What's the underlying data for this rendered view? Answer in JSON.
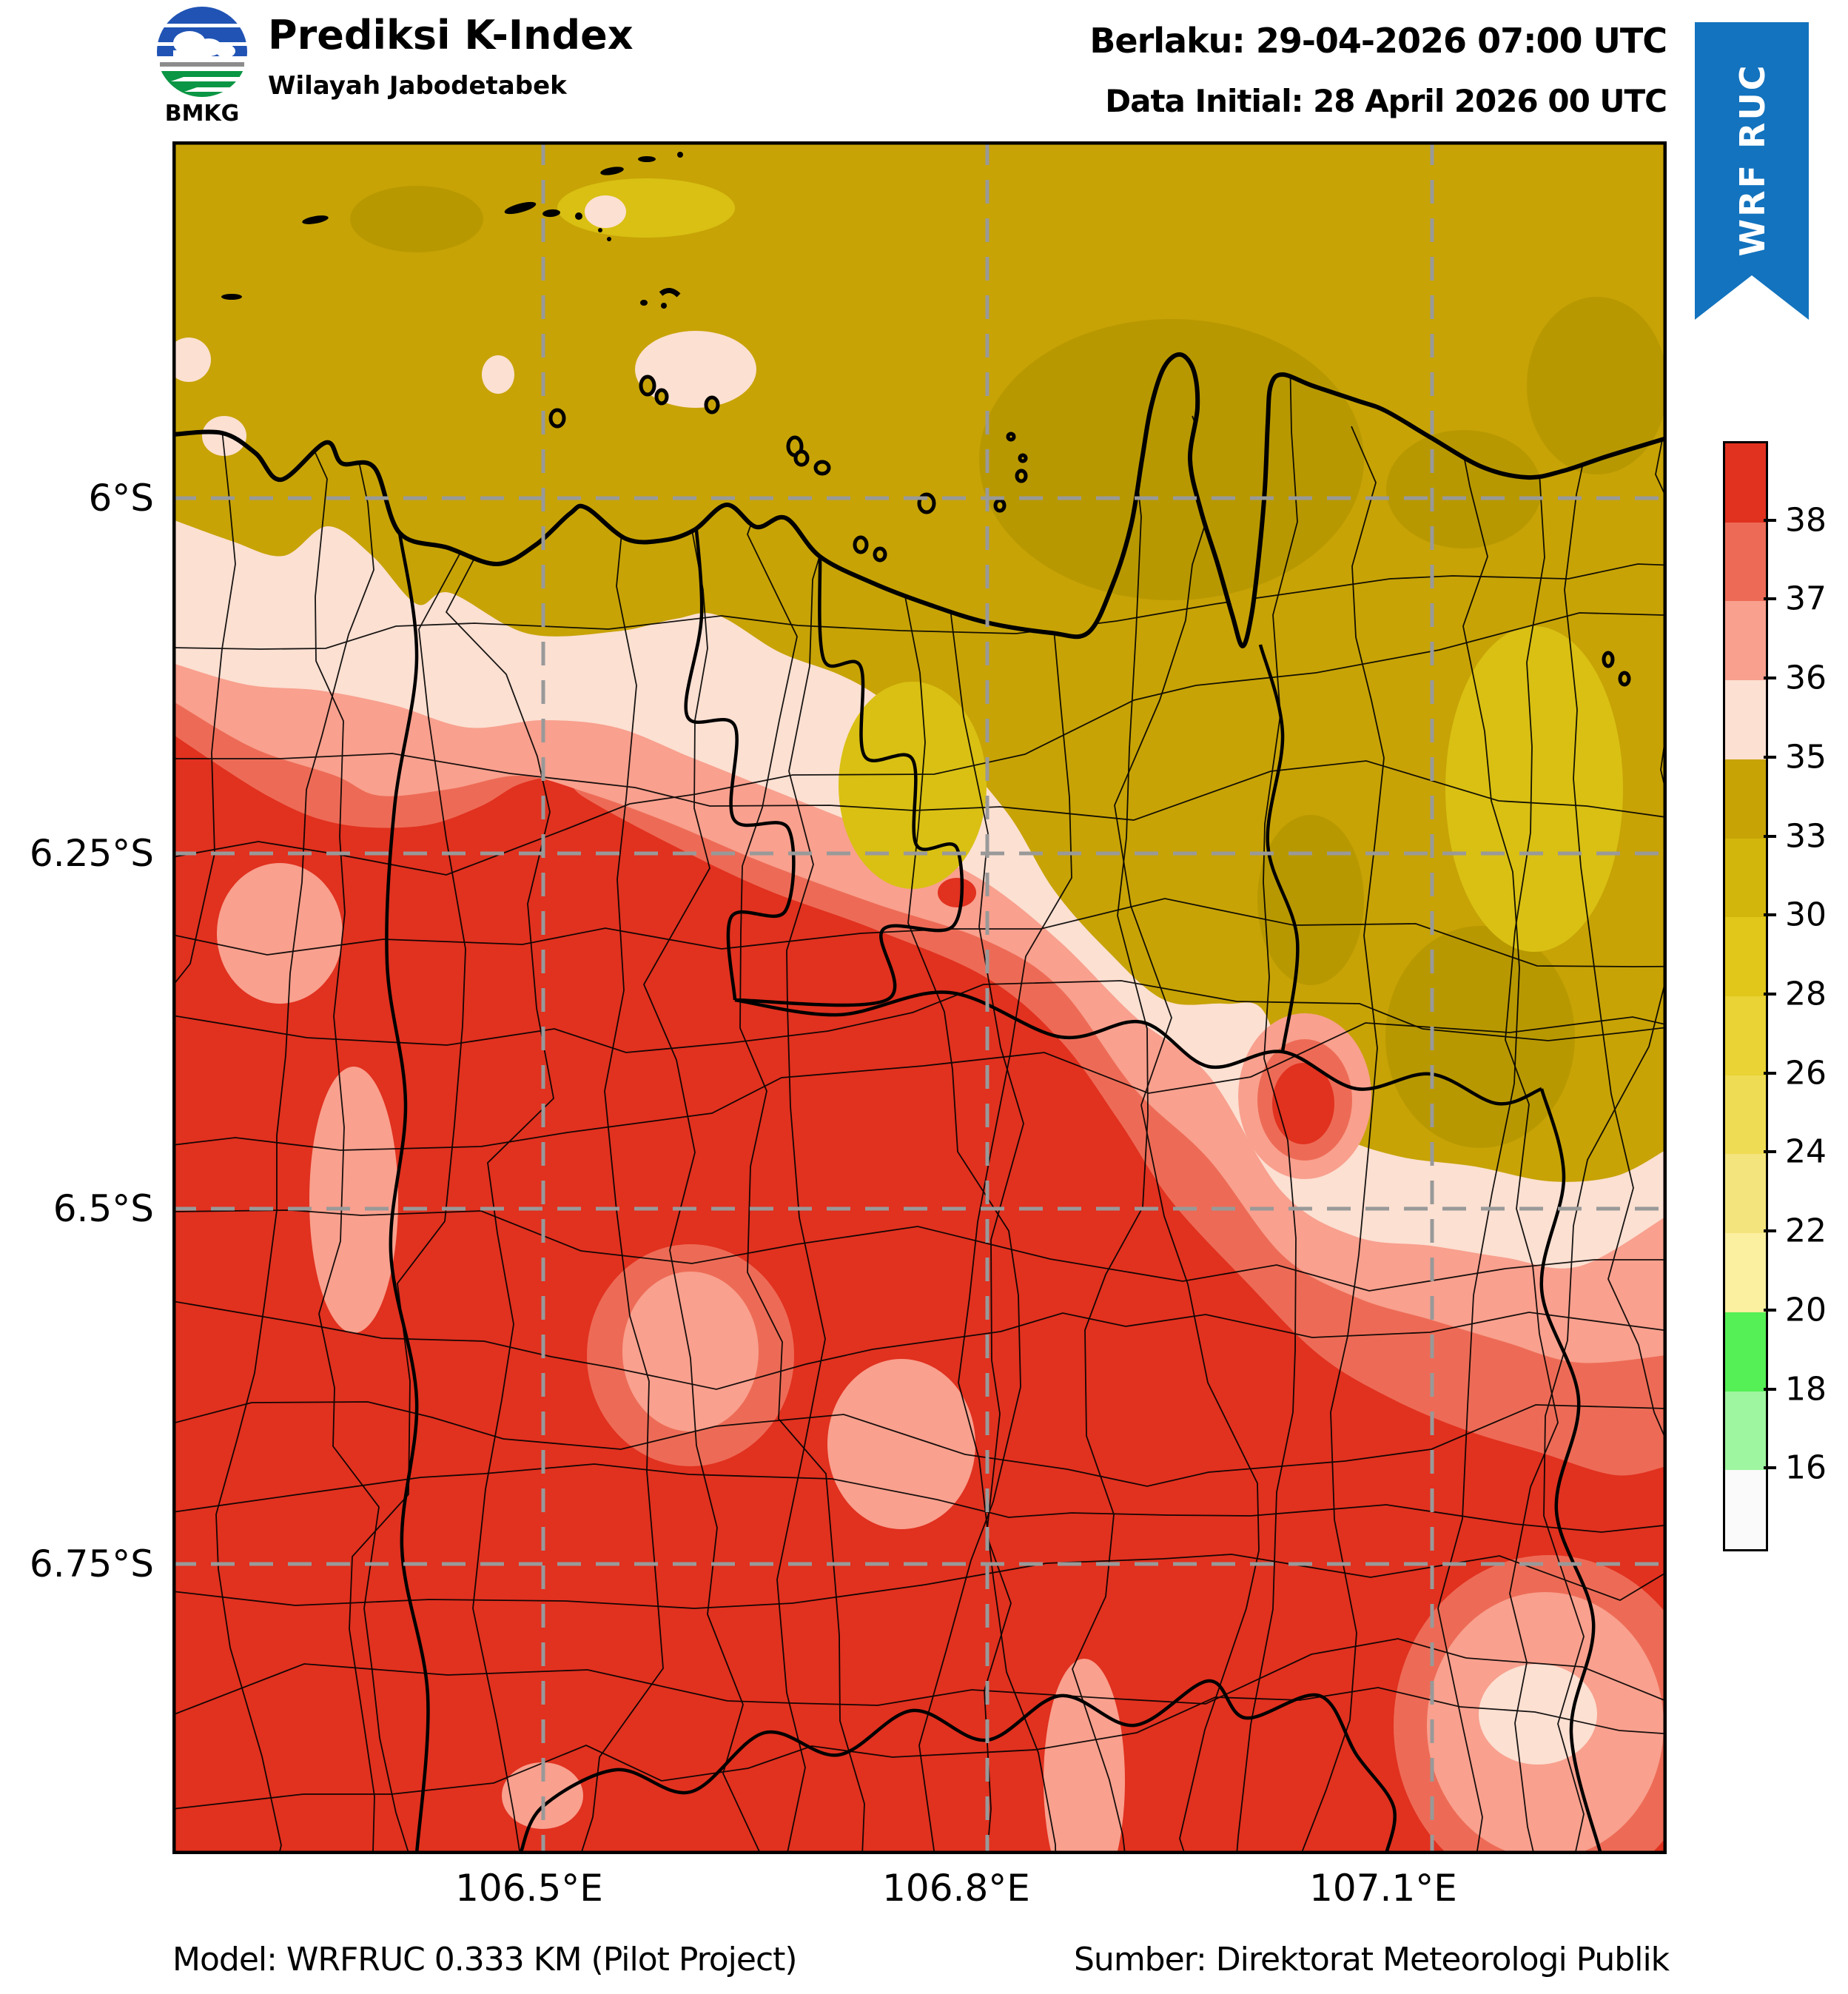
{
  "header": {
    "logo_text": "BMKG",
    "title": "Prediksi K-Index",
    "subtitle": "Wilayah Jabodetabek",
    "valid_label": "Berlaku: 29-04-2026 07:00 UTC",
    "init_label": "Data Initial: 28 April 2026 00 UTC"
  },
  "ribbon": {
    "text": "WRF RUC",
    "color": "#1373BE"
  },
  "axes": {
    "lat_labels": [
      "6°S",
      "6.25°S",
      "6.5°S",
      "6.75°S"
    ],
    "lon_labels": [
      "106.5°E",
      "106.8°E",
      "107.1°E"
    ]
  },
  "colorbar": {
    "tick_labels": [
      "38",
      "37",
      "36",
      "35",
      "33",
      "30",
      "28",
      "26",
      "24",
      "22",
      "20",
      "18",
      "16"
    ],
    "segment_colors_top_to_bottom": [
      "#E1311F",
      "#ED6B56",
      "#F9A08E",
      "#FCE0D2",
      "#C7A306",
      "#D3B60B",
      "#E0C71A",
      "#E9D335",
      "#EFDC55",
      "#F3E47E",
      "#FBEFA0",
      "#55EF56",
      "#9FF6A0",
      "#FAFAFA"
    ]
  },
  "map": {
    "type": "filled-contour K-Index forecast map",
    "colors": {
      "deep_red": "#E1311F",
      "medium_red": "#ED6B56",
      "salmon": "#F9A08E",
      "pale_pink": "#FCE0D2",
      "olive": "#C7A306",
      "olive_dark": "#B89800",
      "olive_light": "#D9C013",
      "gridline": "#999999",
      "boundary": "#000000",
      "sea_island_outline": "#000000"
    }
  },
  "footer": {
    "model": "Model: WRFRUC 0.333 KM (Pilot Project)",
    "source": "Sumber: Direktorat Meteorologi Publik"
  }
}
